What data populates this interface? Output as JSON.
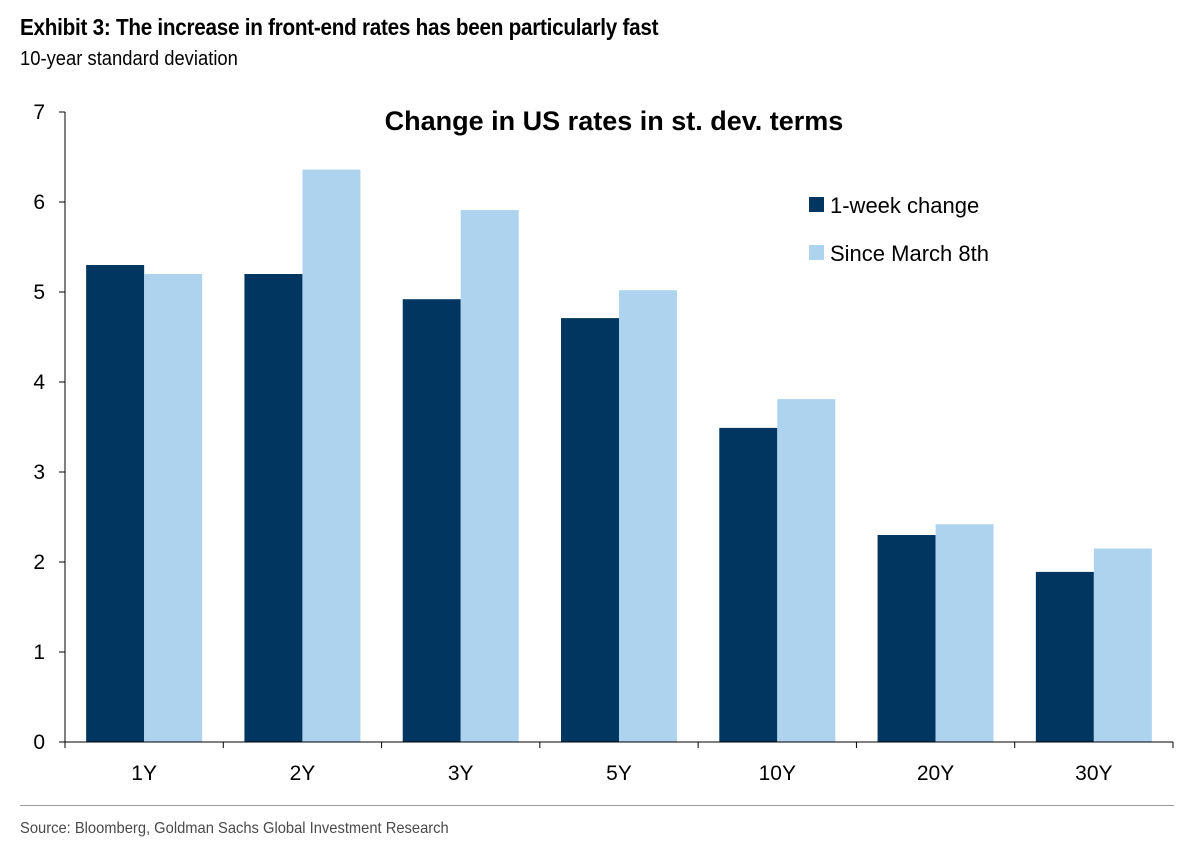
{
  "header": {
    "exhibit_title": "Exhibit 3: The increase in front-end rates has been particularly fast",
    "exhibit_subtitle": "10-year standard deviation"
  },
  "footer": {
    "source": "Source: Bloomberg, Goldman Sachs Global Investment Research"
  },
  "chart_data": {
    "type": "bar",
    "title": "Change in US rates in st. dev. terms",
    "xlabel": "",
    "ylabel": "",
    "categories": [
      "1Y",
      "2Y",
      "3Y",
      "5Y",
      "10Y",
      "20Y",
      "30Y"
    ],
    "series": [
      {
        "name": "1-week change",
        "color": "#003660",
        "values": [
          5.3,
          5.2,
          4.92,
          4.71,
          3.49,
          2.3,
          1.89
        ]
      },
      {
        "name": "Since March 8th",
        "color": "#add3ef",
        "values": [
          5.2,
          6.36,
          5.91,
          5.02,
          3.81,
          2.42,
          2.15
        ]
      }
    ],
    "ylim": [
      0,
      7
    ],
    "yticks": [
      0,
      1,
      2,
      3,
      4,
      5,
      6,
      7
    ],
    "grid": false,
    "legend_position": "top-right"
  }
}
